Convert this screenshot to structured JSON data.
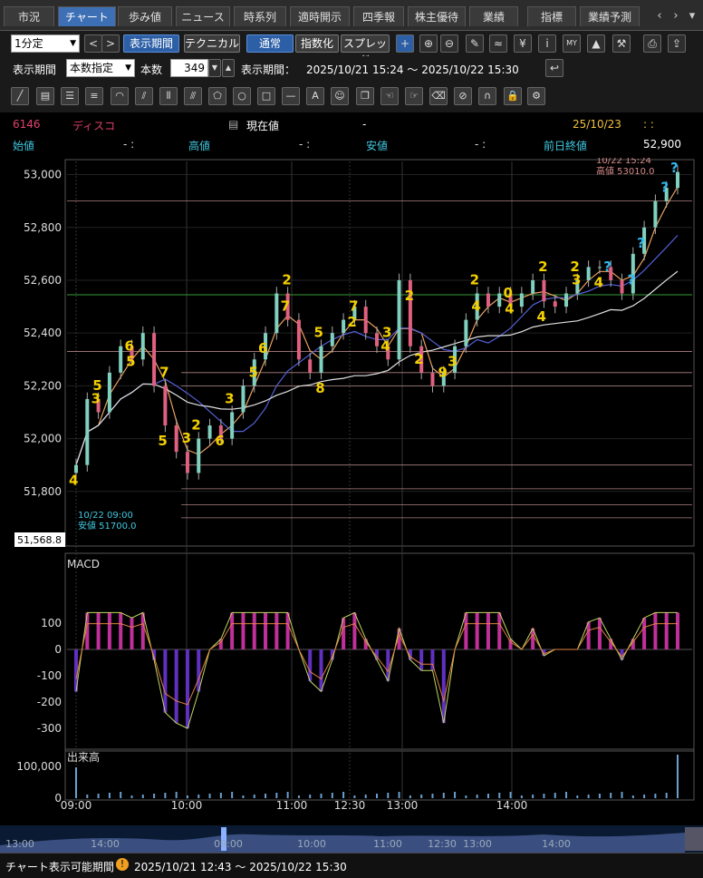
{
  "tabs": [
    {
      "label": "市況"
    },
    {
      "label": "チャート"
    },
    {
      "label": "歩み値"
    },
    {
      "label": "ニュース"
    },
    {
      "label": "時系列"
    },
    {
      "label": "適時開示"
    },
    {
      "label": "四季報"
    },
    {
      "label": "株主優待"
    },
    {
      "label": "業績"
    },
    {
      "label": "指標"
    },
    {
      "label": "業績予測"
    }
  ],
  "toolbar1": {
    "interval": "1分定",
    "period_button": "表示期間",
    "technical_button": "テクニカル",
    "normal_button": "通常",
    "index_button": "指数化",
    "spread_button": "スプレッド"
  },
  "toolbar2": {
    "period_label": "表示期間",
    "count_mode": "本数指定",
    "count_label": "本数",
    "count_value": "349",
    "range_label": "表示期間：",
    "range_value": "2025/10/21 15:24 ～ 2025/10/22 15:30"
  },
  "quote": {
    "code": "6146",
    "name": "ディスコ",
    "current_label": "現在値",
    "current_value": "-",
    "date": "25/10/23",
    "time": ": :",
    "open_label": "始値",
    "open_value": "- :",
    "high_label": "高値",
    "high_value": "- :",
    "low_label": "安値",
    "low_value": "- :",
    "prev_close_label": "前日終値",
    "prev_close_value": "52,900"
  },
  "chart_annotations": {
    "high_note_time": "10/22 15:24",
    "high_note": "高値 53010.0",
    "low_note_time": "10/22 09:00",
    "low_note": "安値 51700.0",
    "price_box": "51,568.8",
    "macd_label": "MACD",
    "volume_label": "出来高"
  },
  "chart_data": {
    "type": "line",
    "y_ticks": [
      "53,000",
      "52,800",
      "52,600",
      "52,400",
      "52,200",
      "52,000",
      "51,800"
    ],
    "ylim": [
      51600,
      53050
    ],
    "x_ticks": [
      "09:00",
      "10:00",
      "11:00",
      "12:30",
      "13:00",
      "14:00"
    ],
    "macd_ticks": [
      "100",
      "0",
      "-100",
      "-200",
      "-300"
    ],
    "volume_ticks": [
      "100,000",
      "0"
    ],
    "series": [
      {
        "values": [
          51900,
          52150,
          52100,
          52250,
          52350,
          52300,
          52400,
          52200,
          52050,
          51950,
          51870,
          52000,
          52050,
          52000,
          52100,
          52200,
          52300,
          52400,
          52550,
          52450,
          52300,
          52250,
          52350,
          52400,
          52450,
          52500,
          52400,
          52350,
          52300,
          52600,
          52350,
          52250,
          52200,
          52250,
          52350,
          52450,
          52550,
          52500,
          52550,
          52500,
          52550,
          52600,
          52520,
          52500,
          52550,
          52600,
          52650,
          52650,
          52600,
          52550,
          52700,
          52800,
          52900,
          52950,
          53010
        ]
      }
    ],
    "markers": [
      "4",
      "5",
      "3",
      "5",
      "6",
      "7",
      "5",
      "3",
      "2",
      "6",
      "3",
      "5",
      "6",
      "2",
      "7",
      "8",
      "5",
      "7",
      "2",
      "3",
      "4",
      "2",
      "2",
      "9",
      "3",
      "4",
      "2",
      "4",
      "0",
      "2",
      "4",
      "3",
      "2",
      "4",
      "?",
      "?",
      "?",
      "?",
      "?"
    ]
  },
  "overview": {
    "ticks": [
      "13:00",
      "14:00",
      "09:00",
      "10:00",
      "11:00",
      "12:30",
      "13:00",
      "14:00"
    ]
  },
  "footer": {
    "label": "チャート表示可能期間",
    "range": "2025/10/21 12:43 ～ 2025/10/22 15:30"
  },
  "colors": {
    "tab_active": "#3d6fb5",
    "price_line": "#e8a060",
    "ma_blue": "#5560d8",
    "ma_white": "#e0e0e0",
    "support_green": "#3a9a3a",
    "macd_pos": "#c0309a",
    "macd_neg": "#6030c0",
    "marker_yellow": "#f4d000",
    "marker_cyan": "#30b8f0",
    "code_red": "#e0406a"
  }
}
